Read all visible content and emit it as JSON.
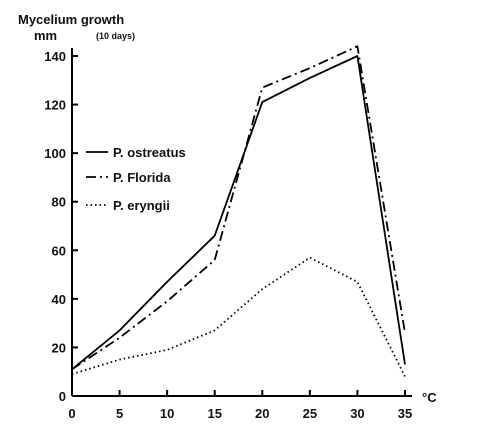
{
  "chart_data": {
    "type": "line",
    "ylabel": "Mycelium growth",
    "yunit": "mm",
    "ylabel_note": "(10 days)",
    "xunit": "°C",
    "x": [
      0,
      5,
      10,
      15,
      20,
      25,
      30,
      35
    ],
    "xticks": [
      "0",
      "5",
      "10",
      "15",
      "20",
      "25",
      "30",
      "35"
    ],
    "yticks": [
      "0",
      "20",
      "40",
      "60",
      "80",
      "100",
      "120",
      "140"
    ],
    "xlim": [
      0,
      35
    ],
    "ylim": [
      0,
      140
    ],
    "grid": false,
    "legend_position": "left",
    "series": [
      {
        "name": "P. ostreatus",
        "style": "solid",
        "color": "#000000",
        "values": [
          11,
          27,
          47,
          66,
          121,
          131,
          140,
          13
        ]
      },
      {
        "name": "P. Florida",
        "style": "dashdot",
        "color": "#000000",
        "values": [
          11,
          24,
          39,
          56,
          127,
          135,
          144,
          26
        ]
      },
      {
        "name": "P. eryngii",
        "style": "dotted",
        "color": "#000000",
        "values": [
          9,
          15,
          19,
          27,
          44,
          57,
          47,
          8
        ]
      }
    ]
  }
}
